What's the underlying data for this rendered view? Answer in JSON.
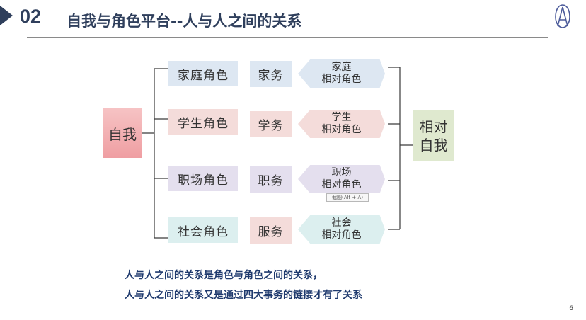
{
  "header": {
    "section_number": "02",
    "title": "自我与角色平台--人与人之间的关系"
  },
  "diagram": {
    "self_label": "自我",
    "peer_label_line1": "相对",
    "peer_label_line2": "自我",
    "rows": [
      {
        "role": "家庭角色",
        "duty": "家务",
        "relation_line1": "家庭",
        "relation_line2": "相对角色",
        "color": "#dde7f2"
      },
      {
        "role": "学生角色",
        "duty": "学务",
        "relation_line1": "学生",
        "relation_line2": "相对角色",
        "color": "#f4dcda"
      },
      {
        "role": "职场角色",
        "duty": "职务",
        "relation_line1": "职场",
        "relation_line2": "相对角色",
        "color": "#e4dfee"
      },
      {
        "role": "社会角色",
        "duty": "服务",
        "relation_line1": "社会",
        "relation_line2": "相对角色",
        "color": "#dcefef"
      }
    ],
    "self_color": "#f3b3b5",
    "peer_color": "#dfe9cf",
    "duty_colors": [
      "#dde7f2",
      "#f4dcda",
      "#e4dfee",
      "#f4dcda"
    ]
  },
  "screenshot_tag": "截图(Alt + A)",
  "summary": {
    "line1": "人与人之间的关系是角色与角色之间的关系，",
    "line2": "人与人之间的关系又是通过四大事务的链接才有了关系"
  },
  "page_number": "6",
  "colors": {
    "title": "#2f3f5c",
    "summary": "#1f3a6e",
    "connector": "#3a3a3a"
  }
}
